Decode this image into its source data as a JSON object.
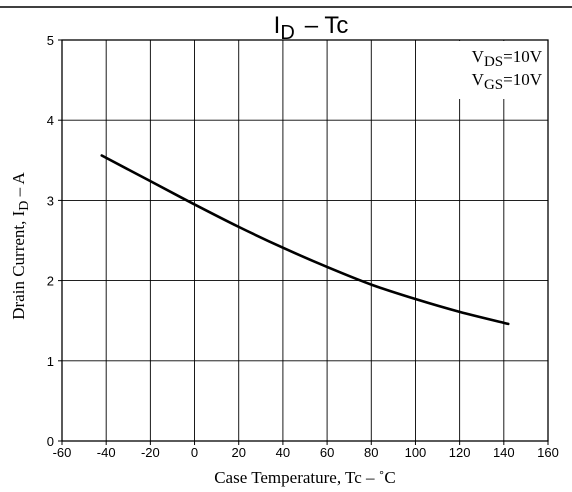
{
  "chart_data": {
    "type": "line",
    "title": "ID – Tc",
    "title_main": "I",
    "title_sub": "D",
    "title_rest": "– Tc",
    "xlabel": "Case Temperature, Tc  –  ˚C",
    "ylabel_main": "Drain Current, I",
    "ylabel_sub": "D",
    "ylabel_rest": " – A",
    "xlim": [
      -60,
      160
    ],
    "ylim": [
      0,
      5
    ],
    "xticks": [
      -60,
      -40,
      -20,
      0,
      20,
      40,
      60,
      80,
      100,
      120,
      140,
      160
    ],
    "yticks": [
      0,
      1,
      2,
      3,
      4,
      5
    ],
    "grid": true,
    "legend": "top-right",
    "conditions": [
      {
        "main": "V",
        "sub": "DS",
        "rest": "=10V"
      },
      {
        "main": "V",
        "sub": "GS",
        "rest": "=10V"
      }
    ],
    "series": [
      {
        "x": [
          -42,
          -20,
          0,
          20,
          40,
          60,
          80,
          100,
          120,
          142
        ],
        "values": [
          3.56,
          3.24,
          2.95,
          2.67,
          2.41,
          2.17,
          1.95,
          1.77,
          1.61,
          1.46
        ]
      }
    ]
  }
}
